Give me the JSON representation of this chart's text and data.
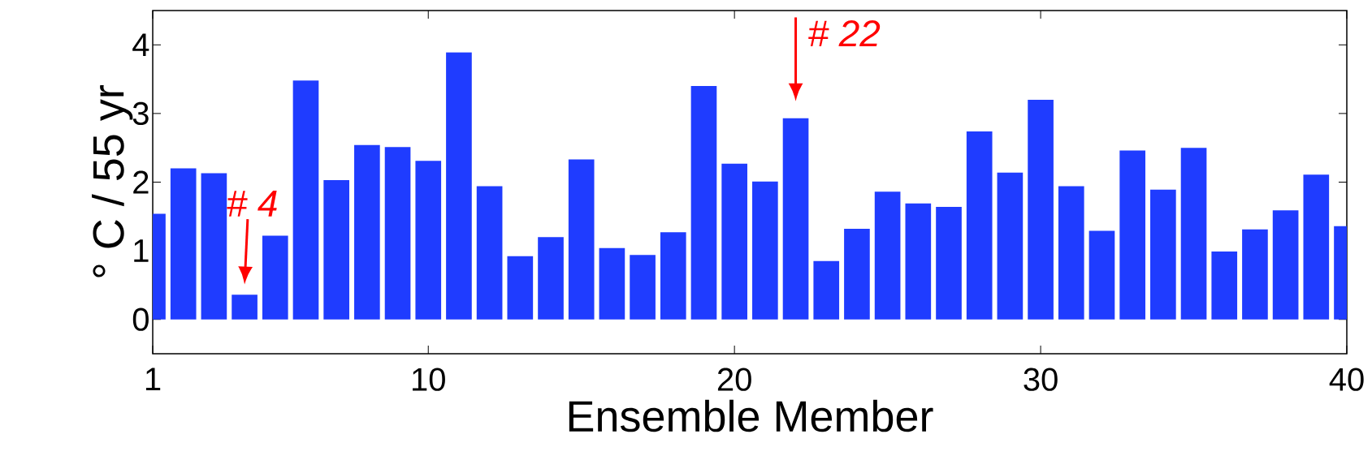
{
  "chart_data": {
    "type": "bar",
    "xlabel": "Ensemble Member",
    "ylabel": "° C / 55 yr",
    "x": [
      1,
      2,
      3,
      4,
      5,
      6,
      7,
      8,
      9,
      10,
      11,
      12,
      13,
      14,
      15,
      16,
      17,
      18,
      19,
      20,
      21,
      22,
      23,
      24,
      25,
      26,
      27,
      28,
      29,
      30,
      31,
      32,
      33,
      34,
      35,
      36,
      37,
      38,
      39,
      40
    ],
    "values": [
      1.54,
      2.2,
      2.13,
      0.36,
      1.22,
      3.48,
      2.03,
      2.54,
      2.51,
      2.31,
      3.89,
      1.94,
      0.92,
      1.2,
      2.33,
      1.04,
      0.94,
      1.27,
      3.4,
      2.27,
      2.01,
      2.93,
      0.85,
      1.32,
      1.86,
      1.69,
      1.64,
      2.74,
      2.14,
      3.2,
      1.94,
      1.29,
      2.46,
      1.89,
      2.5,
      0.99,
      1.31,
      1.59,
      2.11,
      1.36
    ],
    "color": "#1f3cff",
    "xlim": [
      1,
      40
    ],
    "ylim": [
      -0.5,
      4.5
    ],
    "xticks": [
      1,
      10,
      20,
      30,
      40
    ],
    "yticks": [
      0,
      1,
      2,
      3,
      4
    ],
    "annotations": [
      {
        "text": "# 4",
        "x": 4,
        "y": 0.36
      },
      {
        "text": "# 22",
        "x": 22,
        "y": 2.93
      }
    ]
  }
}
